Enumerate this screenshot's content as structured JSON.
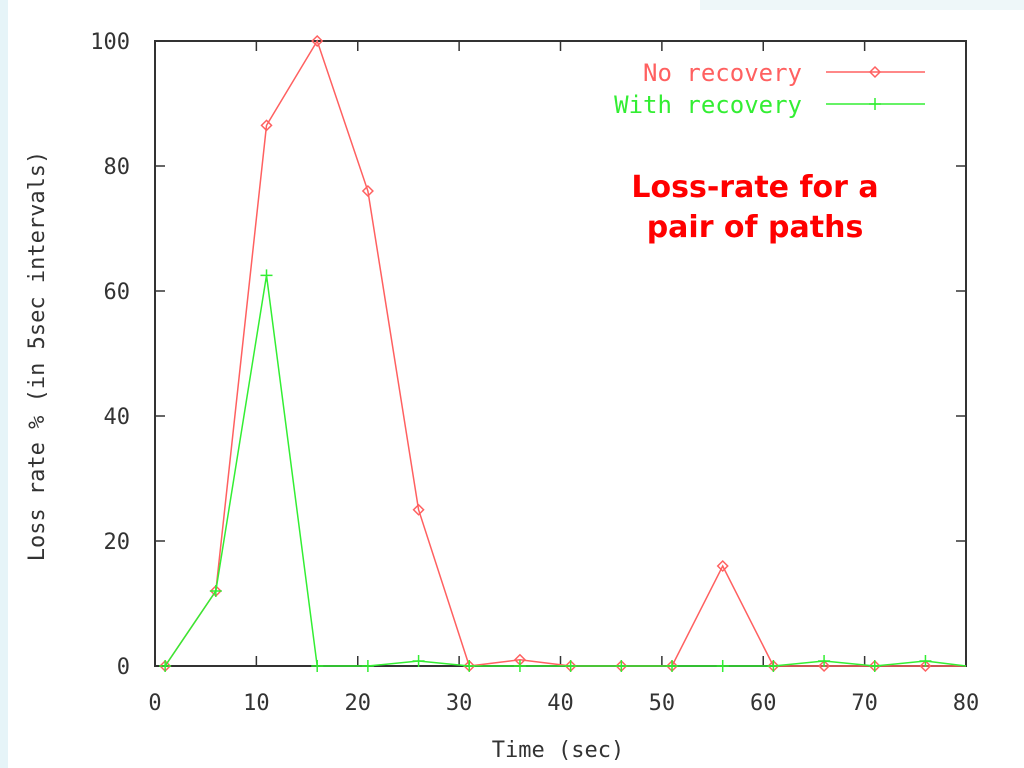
{
  "chart_data": {
    "type": "line",
    "title": "",
    "annotation_lines": [
      "Loss-rate for a",
      "pair of paths"
    ],
    "xlabel": "Time (sec)",
    "ylabel": "Loss rate % (in 5sec intervals)",
    "xlim": [
      0,
      80
    ],
    "ylim": [
      0,
      100
    ],
    "xticks": [
      0,
      10,
      20,
      30,
      40,
      50,
      60,
      70,
      80
    ],
    "yticks": [
      0,
      20,
      40,
      60,
      80,
      100
    ],
    "grid": false,
    "legend_position": "top-right",
    "series": [
      {
        "name": "No recovery",
        "color": "#ff6060",
        "marker": "diamond",
        "x": [
          1,
          6,
          11,
          16,
          21,
          26,
          31,
          36,
          41,
          46,
          51,
          56,
          61,
          66,
          71,
          76,
          80
        ],
        "y": [
          0,
          12,
          86.5,
          100,
          76,
          25,
          0,
          1,
          0,
          0,
          0,
          16,
          0,
          0,
          0,
          0,
          0
        ]
      },
      {
        "name": "With recovery",
        "color": "#33ee33",
        "marker": "plus",
        "x": [
          1,
          6,
          11,
          16,
          21,
          26,
          31,
          36,
          41,
          46,
          51,
          56,
          61,
          66,
          71,
          76,
          80
        ],
        "y": [
          0,
          12,
          62.5,
          0,
          0,
          0.8,
          0,
          0,
          0,
          0,
          0,
          0,
          0,
          0.8,
          0,
          0.8,
          0
        ]
      }
    ]
  }
}
